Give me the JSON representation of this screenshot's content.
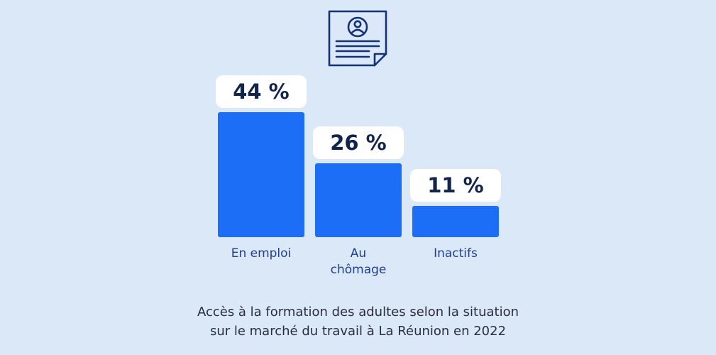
{
  "chart_data": {
    "type": "bar",
    "categories": [
      [
        "En emploi"
      ],
      [
        "Au",
        "chômage"
      ],
      [
        "Inactifs"
      ]
    ],
    "values": [
      44,
      26,
      11
    ],
    "value_labels": [
      "44 %",
      "26 %",
      "11 %"
    ],
    "ylim": [
      0,
      44
    ],
    "grid": false,
    "bar_color": "#1b6ef5",
    "label_color": "#10244f",
    "category_color": "#1f3f8f",
    "caption": [
      "Accès à la formation des adultes selon la situation",
      "sur le marché du travail à La Réunion en 2022"
    ]
  },
  "icon": "cv-document-icon",
  "colors": {
    "background": "#dbe8f7",
    "icon_stroke": "#12337a"
  }
}
